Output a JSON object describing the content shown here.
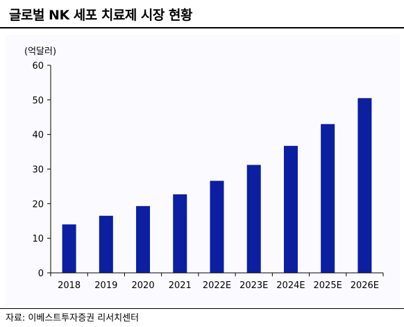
{
  "title": "글로벌 NK 세포 치료제 시장 현황",
  "source": "자료: 이베스트투자증권 리서치센터",
  "colors": {
    "bar": "#0b1fa0",
    "axis": "#000000"
  },
  "chart_data": {
    "type": "bar",
    "title": "글로벌 NK 세포 치료제 시장 현황",
    "ylabel": "(억달러)",
    "xlabel": "",
    "categories": [
      "2018",
      "2019",
      "2020",
      "2021",
      "2022E",
      "2023E",
      "2024E",
      "2025E",
      "2026E"
    ],
    "values": [
      14.0,
      16.5,
      19.3,
      22.7,
      26.6,
      31.2,
      36.7,
      43.0,
      50.5
    ],
    "ylim": [
      0,
      60
    ],
    "yticks": [
      0,
      10,
      20,
      30,
      40,
      50,
      60
    ],
    "grid": false,
    "legend": "none"
  }
}
